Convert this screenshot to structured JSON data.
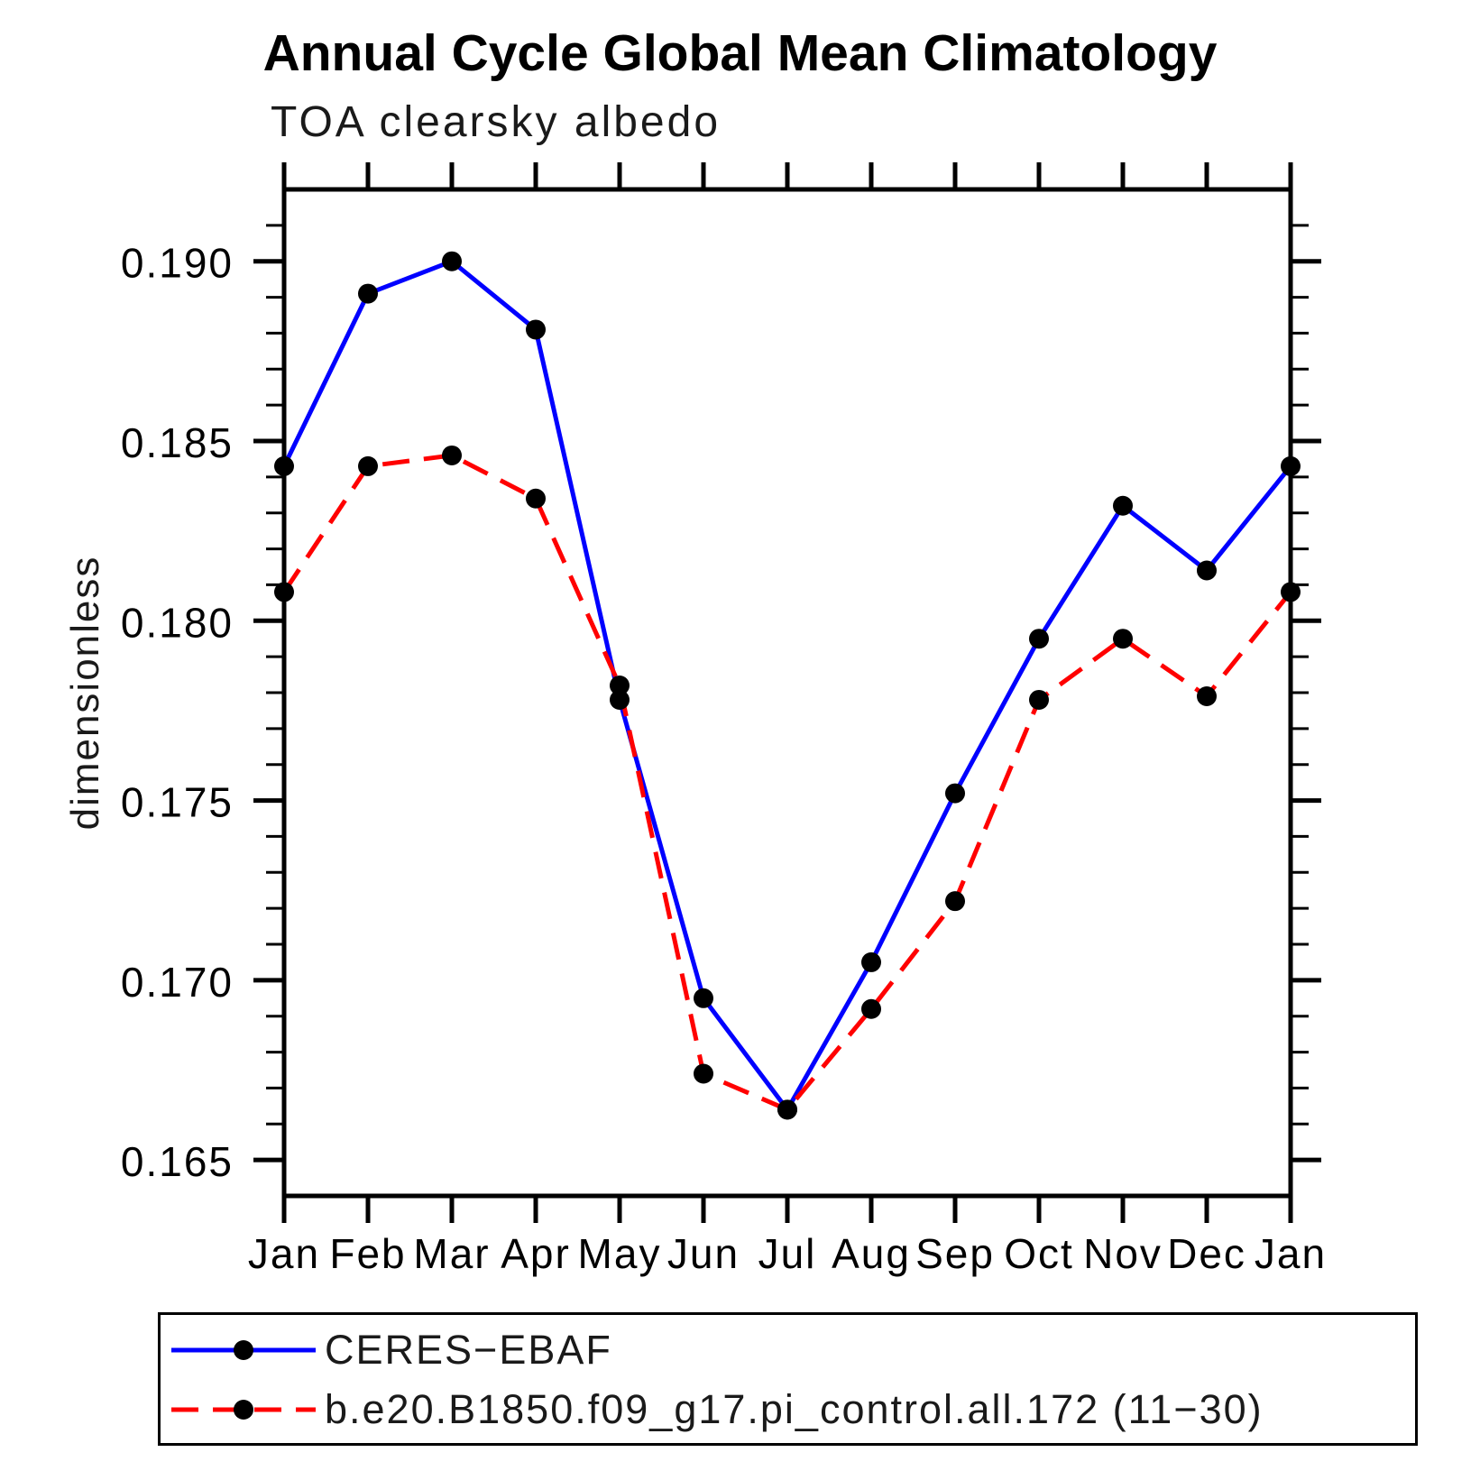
{
  "title": "Annual Cycle Global Mean Climatology",
  "subtitle": "TOA clearsky albedo",
  "chart_data": {
    "type": "line",
    "title": "Annual Cycle Global Mean Climatology",
    "subtitle": "TOA clearsky albedo",
    "xlabel": "",
    "ylabel": "dimensionless",
    "x_categories": [
      "Jan",
      "Feb",
      "Mar",
      "Apr",
      "May",
      "Jun",
      "Jul",
      "Aug",
      "Sep",
      "Oct",
      "Nov",
      "Dec",
      "Jan"
    ],
    "ylim": [
      0.164,
      0.192
    ],
    "ytick_major": [
      0.165,
      0.17,
      0.175,
      0.18,
      0.185,
      0.19
    ],
    "ytick_labels": [
      "0.165",
      "0.170",
      "0.175",
      "0.180",
      "0.185",
      "0.190"
    ],
    "ytick_minor_step": 0.001,
    "grid": false,
    "legend_position": "bottom",
    "axis_color": "#000000",
    "marker": "filled-circle",
    "marker_color": "#000000",
    "series": [
      {
        "name": "CERES−EBAF",
        "color": "#0000ff",
        "style": "solid",
        "marker_color": "#000000",
        "values": [
          0.1843,
          0.1891,
          0.19,
          0.1881,
          0.1778,
          0.1695,
          0.1664,
          0.1705,
          0.1752,
          0.1795,
          0.1832,
          0.1814,
          0.1843
        ]
      },
      {
        "name": "b.e20.B1850.f09_g17.pi_control.all.172 (11−30)",
        "color": "#ff0000",
        "style": "dashed",
        "marker_color": "#000000",
        "values": [
          0.1808,
          0.1843,
          0.1846,
          0.1834,
          0.1782,
          0.1674,
          0.1664,
          0.1692,
          0.1722,
          0.1778,
          0.1795,
          0.1779,
          0.1808
        ]
      }
    ]
  },
  "legend": {
    "entries": [
      {
        "label": "CERES−EBAF"
      },
      {
        "label": "b.e20.B1850.f09_g17.pi_control.all.172 (11−30)"
      }
    ]
  }
}
